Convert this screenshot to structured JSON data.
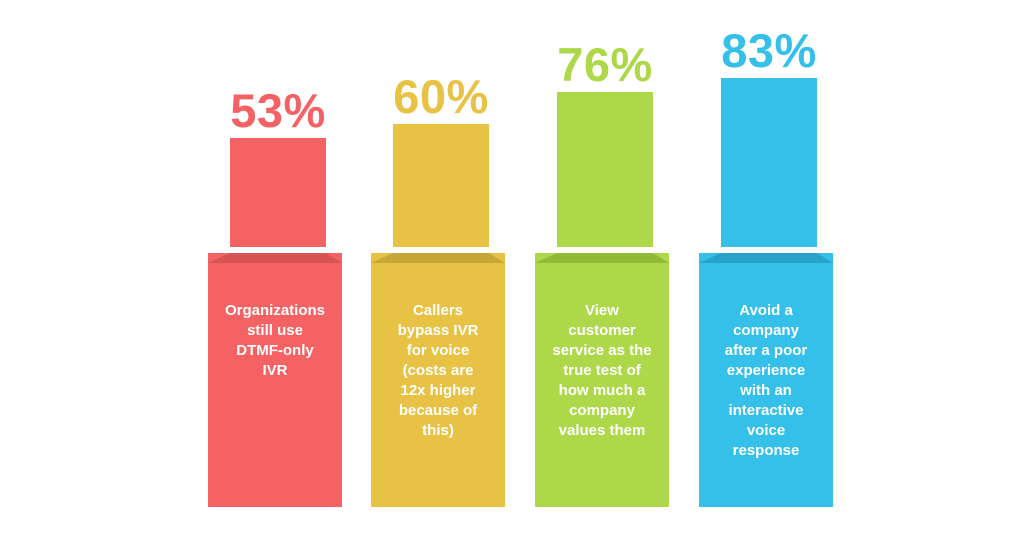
{
  "chart_data": {
    "type": "bar",
    "unit": "%",
    "bars": [
      {
        "percent_label": "53%",
        "value": 53,
        "description": "Organizations\nstill use\nDTMF-only\nIVR",
        "color": "#f46263",
        "shade": "#d85454",
        "icon": "desk-phone-icon"
      },
      {
        "percent_label": "60%",
        "value": 60,
        "description": "Callers\nbypass IVR\nfor voice\n(costs are\n12x higher\nbecause of\nthis)",
        "color": "#e7c244",
        "shade": "#c9a736",
        "icon": "phone-call-icon"
      },
      {
        "percent_label": "76%",
        "value": 76,
        "description": "View\ncustomer\nservice as the\ntrue test of\nhow much a\ncompany\nvalues them",
        "color": "#acd84a",
        "shade": "#8fbb37",
        "icon": "headset-icon"
      },
      {
        "percent_label": "83%",
        "value": 83,
        "description": "Avoid a\ncompany\nafter a poor\nexperience\nwith an\ninteractive\nvoice\nresponse",
        "color": "#35c0e9",
        "shade": "#27a3c9",
        "icon": "mobile-to-agent-icon"
      }
    ]
  }
}
